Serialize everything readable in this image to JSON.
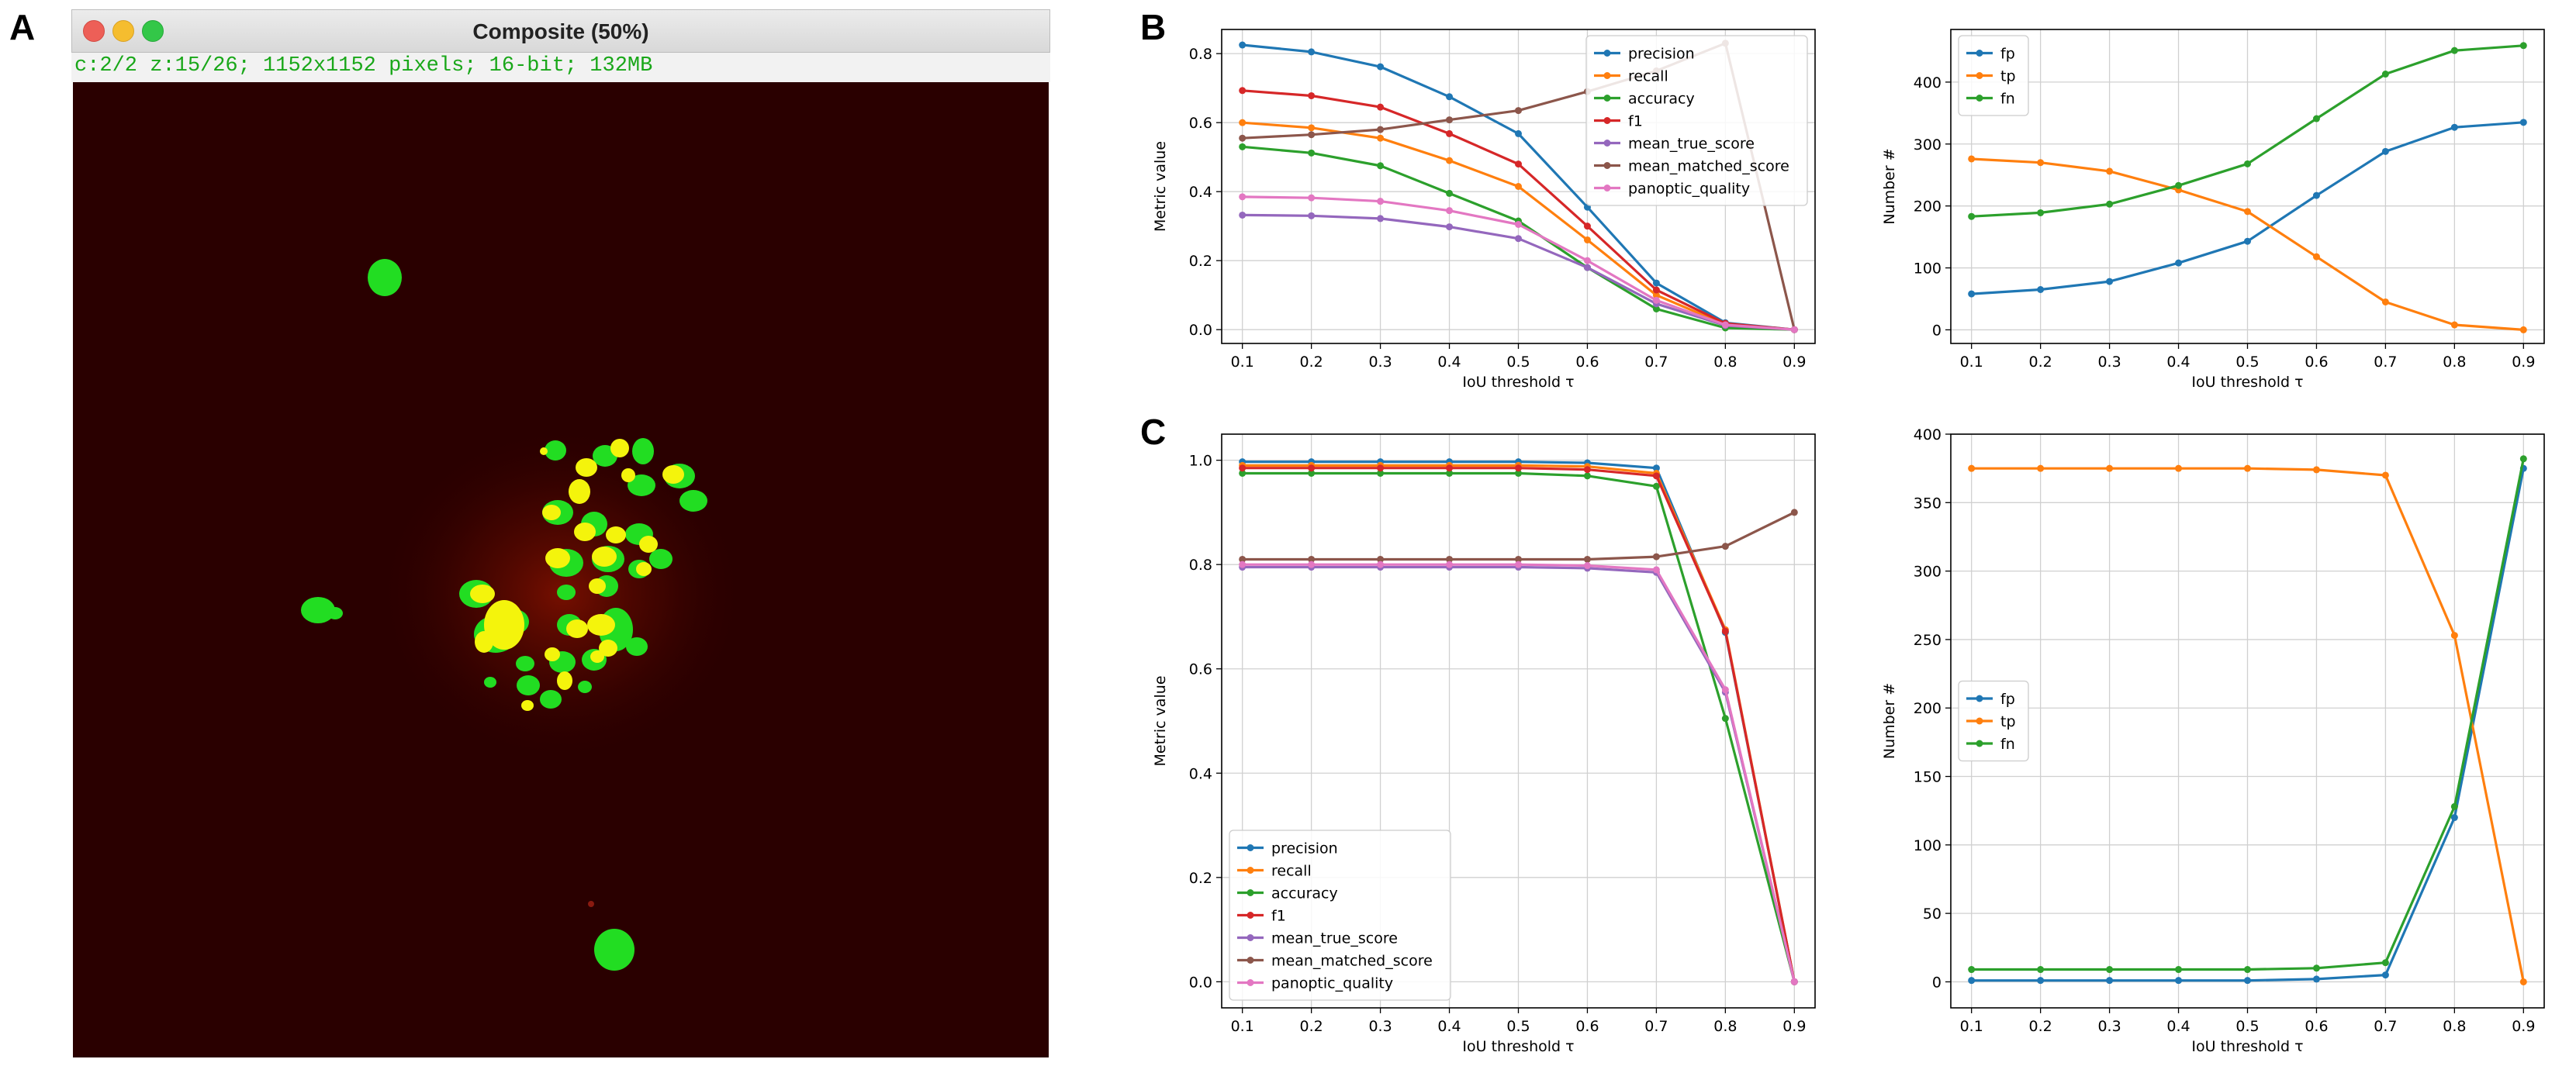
{
  "panel_labels": {
    "a": "A",
    "b": "B",
    "c": "C"
  },
  "window": {
    "title": "Composite (50%)",
    "status": "c:2/2 z:15/26; 1152x1152 pixels; 16-bit; 132MB"
  },
  "colors": {
    "precision": "#1f77b4",
    "recall": "#ff7f0e",
    "accuracy": "#2ca02c",
    "f1": "#d62728",
    "mean_true_score": "#9467bd",
    "mean_matched_score": "#8c564b",
    "panoptic_quality": "#e377c2",
    "fp": "#1f77b4",
    "tp": "#ff7f0e",
    "fn": "#2ca02c",
    "window_status": "#19a719",
    "canvas_bg": "#2a0000"
  },
  "chart_data": [
    {
      "id": "B-left",
      "type": "line",
      "xlabel": "IoU threshold τ",
      "ylabel": "Metric value",
      "x": [
        0.1,
        0.2,
        0.3,
        0.4,
        0.5,
        0.6,
        0.7,
        0.8,
        0.9
      ],
      "xlim": [
        0.07,
        0.93
      ],
      "ylim": [
        -0.04,
        0.87
      ],
      "yticks": [
        0.0,
        0.2,
        0.4,
        0.6,
        0.8
      ],
      "ytick_labels": [
        "0.0",
        "0.2",
        "0.4",
        "0.6",
        "0.8"
      ],
      "xtick_labels": [
        "0.1",
        "0.2",
        "0.3",
        "0.4",
        "0.5",
        "0.6",
        "0.7",
        "0.8",
        "0.9"
      ],
      "grid": true,
      "legend_loc": "top-right",
      "series": [
        {
          "name": "precision",
          "values": [
            0.825,
            0.805,
            0.762,
            0.675,
            0.568,
            0.355,
            0.135,
            0.02,
            0.0
          ]
        },
        {
          "name": "recall",
          "values": [
            0.6,
            0.585,
            0.555,
            0.49,
            0.415,
            0.26,
            0.1,
            0.015,
            0.0
          ]
        },
        {
          "name": "accuracy",
          "values": [
            0.53,
            0.512,
            0.475,
            0.395,
            0.315,
            0.18,
            0.06,
            0.005,
            0.0
          ]
        },
        {
          "name": "f1",
          "values": [
            0.693,
            0.678,
            0.645,
            0.568,
            0.48,
            0.3,
            0.115,
            0.018,
            0.0
          ]
        },
        {
          "name": "mean_true_score",
          "values": [
            0.332,
            0.33,
            0.322,
            0.298,
            0.264,
            0.18,
            0.075,
            0.012,
            0.0
          ]
        },
        {
          "name": "mean_matched_score",
          "values": [
            0.555,
            0.565,
            0.58,
            0.608,
            0.635,
            0.69,
            0.75,
            0.83,
            0.0
          ]
        },
        {
          "name": "panoptic_quality",
          "values": [
            0.385,
            0.382,
            0.372,
            0.345,
            0.305,
            0.2,
            0.085,
            0.014,
            0.0
          ]
        }
      ]
    },
    {
      "id": "B-right",
      "type": "line",
      "xlabel": "IoU threshold τ",
      "ylabel": "Number #",
      "x": [
        0.1,
        0.2,
        0.3,
        0.4,
        0.5,
        0.6,
        0.7,
        0.8,
        0.9
      ],
      "xlim": [
        0.07,
        0.93
      ],
      "ylim": [
        -22,
        485
      ],
      "yticks": [
        0,
        100,
        200,
        300,
        400
      ],
      "ytick_labels": [
        "0",
        "100",
        "200",
        "300",
        "400"
      ],
      "xtick_labels": [
        "0.1",
        "0.2",
        "0.3",
        "0.4",
        "0.5",
        "0.6",
        "0.7",
        "0.8",
        "0.9"
      ],
      "grid": true,
      "legend_loc": "top-left",
      "series": [
        {
          "name": "fp",
          "values": [
            58,
            65,
            78,
            108,
            143,
            217,
            288,
            327,
            335
          ]
        },
        {
          "name": "tp",
          "values": [
            276,
            270,
            256,
            226,
            191,
            118,
            45,
            8,
            0
          ]
        },
        {
          "name": "fn",
          "values": [
            183,
            189,
            203,
            233,
            268,
            341,
            413,
            451,
            459
          ]
        }
      ]
    },
    {
      "id": "C-left",
      "type": "line",
      "xlabel": "IoU threshold τ",
      "ylabel": "Metric value",
      "x": [
        0.1,
        0.2,
        0.3,
        0.4,
        0.5,
        0.6,
        0.7,
        0.8,
        0.9
      ],
      "xlim": [
        0.07,
        0.93
      ],
      "ylim": [
        -0.05,
        1.05
      ],
      "yticks": [
        0.0,
        0.2,
        0.4,
        0.6,
        0.8,
        1.0
      ],
      "ytick_labels": [
        "0.0",
        "0.2",
        "0.4",
        "0.6",
        "0.8",
        "1.0"
      ],
      "xtick_labels": [
        "0.1",
        "0.2",
        "0.3",
        "0.4",
        "0.5",
        "0.6",
        "0.7",
        "0.8",
        "0.9"
      ],
      "grid": true,
      "legend_loc": "bottom-left",
      "series": [
        {
          "name": "precision",
          "values": [
            0.997,
            0.997,
            0.997,
            0.997,
            0.997,
            0.995,
            0.985,
            0.67,
            0.0
          ]
        },
        {
          "name": "recall",
          "values": [
            0.99,
            0.99,
            0.99,
            0.99,
            0.99,
            0.988,
            0.975,
            0.675,
            0.0
          ]
        },
        {
          "name": "accuracy",
          "values": [
            0.975,
            0.975,
            0.975,
            0.975,
            0.975,
            0.97,
            0.95,
            0.505,
            0.0
          ]
        },
        {
          "name": "f1",
          "values": [
            0.985,
            0.985,
            0.985,
            0.985,
            0.985,
            0.982,
            0.97,
            0.672,
            0.0
          ]
        },
        {
          "name": "mean_true_score",
          "values": [
            0.795,
            0.795,
            0.795,
            0.795,
            0.795,
            0.793,
            0.785,
            0.555,
            0.0
          ]
        },
        {
          "name": "mean_matched_score",
          "values": [
            0.81,
            0.81,
            0.81,
            0.81,
            0.81,
            0.81,
            0.815,
            0.835,
            0.9
          ]
        },
        {
          "name": "panoptic_quality",
          "values": [
            0.8,
            0.8,
            0.8,
            0.8,
            0.8,
            0.798,
            0.79,
            0.56,
            0.0
          ]
        }
      ]
    },
    {
      "id": "C-right",
      "type": "line",
      "xlabel": "IoU threshold τ",
      "ylabel": "Number #",
      "x": [
        0.1,
        0.2,
        0.3,
        0.4,
        0.5,
        0.6,
        0.7,
        0.8,
        0.9
      ],
      "xlim": [
        0.07,
        0.93
      ],
      "ylim": [
        -19,
        400
      ],
      "yticks": [
        0,
        50,
        100,
        150,
        200,
        250,
        300,
        350,
        400
      ],
      "ytick_labels": [
        "0",
        "50",
        "100",
        "150",
        "200",
        "250",
        "300",
        "350",
        "400"
      ],
      "xtick_labels": [
        "0.1",
        "0.2",
        "0.3",
        "0.4",
        "0.5",
        "0.6",
        "0.7",
        "0.8",
        "0.9"
      ],
      "grid": true,
      "legend_loc": "center-left",
      "series": [
        {
          "name": "fp",
          "values": [
            1,
            1,
            1,
            1,
            1,
            2,
            5,
            120,
            375
          ]
        },
        {
          "name": "tp",
          "values": [
            375,
            375,
            375,
            375,
            375,
            374,
            370,
            253,
            0
          ]
        },
        {
          "name": "fn",
          "values": [
            9,
            9,
            9,
            9,
            9,
            10,
            14,
            128,
            382
          ]
        }
      ]
    }
  ]
}
